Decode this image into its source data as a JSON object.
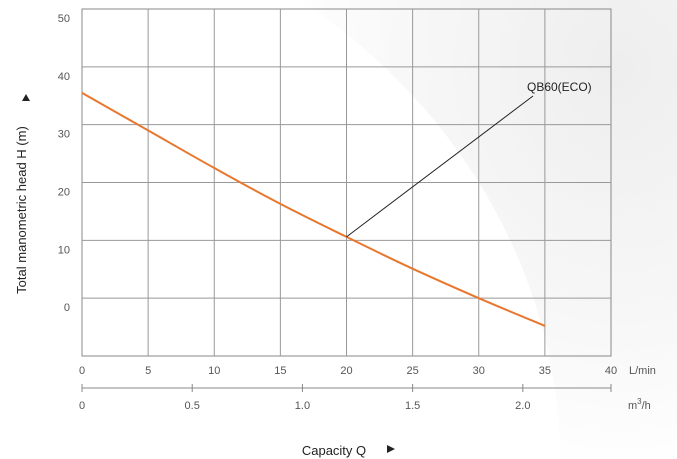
{
  "chart_data": {
    "type": "line",
    "ylabel": "Total manometric head H (m)",
    "xlabel": "Capacity Q",
    "y_ticks": [
      "50",
      "40",
      "30",
      "20",
      "10",
      "0"
    ],
    "ylim": [
      -10,
      50
    ],
    "x_primary": {
      "unit": "L/min",
      "ticks": [
        "0",
        "5",
        "10",
        "15",
        "20",
        "25",
        "30",
        "35",
        "40"
      ],
      "range": [
        0,
        40
      ]
    },
    "x_secondary": {
      "unit_base": "m",
      "unit_sup": "3",
      "unit_tail": "/h",
      "ticks": [
        "0",
        "0.5",
        "1.0",
        "1.5",
        "2.0"
      ],
      "tick_values": [
        0,
        0.5,
        1.0,
        1.5,
        2.0
      ],
      "range": [
        0,
        2.4
      ]
    },
    "grid": true,
    "series": [
      {
        "name": "QB60(ECO)",
        "color": "#e8772e",
        "x": [
          0,
          5,
          10,
          15,
          20,
          25,
          30,
          35
        ],
        "y": [
          35.5,
          29,
          22.5,
          16.3,
          10.6,
          5.1,
          0,
          -4.8
        ]
      }
    ],
    "annotation": {
      "label": "QB60(ECO)",
      "point_x": 20,
      "point_y": 10.6
    }
  },
  "icons": {
    "up_arrow": "up-triangle-icon",
    "right_arrow": "right-triangle-icon"
  }
}
